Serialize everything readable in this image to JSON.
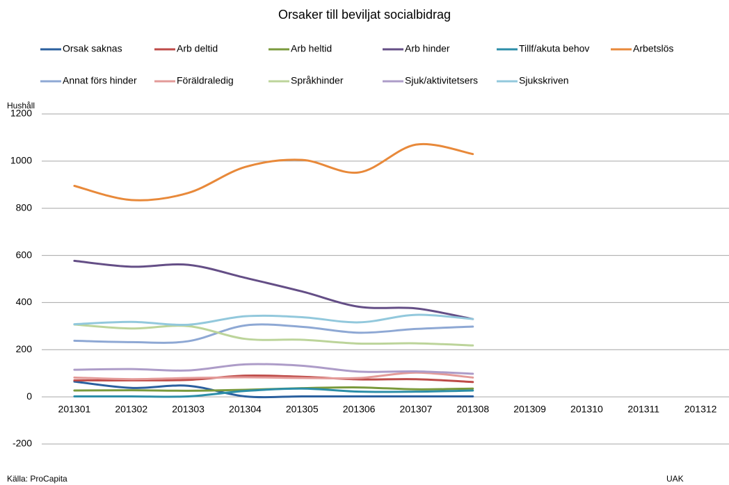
{
  "chart_data": {
    "type": "line",
    "title": "Orsaker till beviljat socialbidrag",
    "y_label": "Hushåll",
    "source": "Källa: ProCapita",
    "note": "UAK",
    "categories": [
      "201301",
      "201302",
      "201303",
      "201304",
      "201305",
      "201306",
      "201307",
      "201308",
      "201309",
      "201310",
      "201311",
      "201312"
    ],
    "ylim": [
      -200,
      1200
    ],
    "yticks": [
      -200,
      0,
      200,
      400,
      600,
      800,
      1000,
      1200
    ],
    "grid": true,
    "smooth": true,
    "series": [
      {
        "name": "Orsak saknas",
        "color": "#2a5f9e",
        "values": [
          65,
          38,
          47,
          2,
          2,
          2,
          2,
          2,
          null,
          null,
          null,
          null
        ]
      },
      {
        "name": "Arb deltid",
        "color": "#be4b48",
        "values": [
          70,
          70,
          72,
          90,
          85,
          74,
          75,
          63,
          null,
          null,
          null,
          null
        ]
      },
      {
        "name": "Arb heltid",
        "color": "#7a9a3c",
        "values": [
          27,
          28,
          26,
          30,
          37,
          40,
          32,
          35,
          null,
          null,
          null,
          null
        ]
      },
      {
        "name": "Arb hinder",
        "color": "#644e86",
        "values": [
          577,
          552,
          560,
          505,
          447,
          382,
          375,
          330,
          null,
          null,
          null,
          null
        ]
      },
      {
        "name": "Tillf/akuta behov",
        "color": "#2c8ea8",
        "values": [
          2,
          2,
          2,
          25,
          35,
          22,
          22,
          27,
          null,
          null,
          null,
          null
        ]
      },
      {
        "name": "Arbetslös",
        "color": "#e8893a",
        "values": [
          895,
          835,
          865,
          975,
          1005,
          952,
          1070,
          1030,
          null,
          null,
          null,
          null
        ]
      },
      {
        "name": "Annat förs hinder",
        "color": "#8ea8d4",
        "values": [
          238,
          232,
          236,
          303,
          297,
          272,
          288,
          298,
          null,
          null,
          null,
          null
        ]
      },
      {
        "name": "Föräldraledig",
        "color": "#e39a98",
        "values": [
          82,
          75,
          80,
          83,
          80,
          80,
          103,
          82,
          null,
          null,
          null,
          null
        ]
      },
      {
        "name": "Språkhinder",
        "color": "#bcd49a",
        "values": [
          307,
          290,
          300,
          246,
          242,
          226,
          227,
          218,
          null,
          null,
          null,
          null
        ]
      },
      {
        "name": "Sjuk/aktivitetsers",
        "color": "#ad9cc8",
        "values": [
          115,
          118,
          112,
          138,
          132,
          107,
          108,
          98,
          null,
          null,
          null,
          null
        ]
      },
      {
        "name": "Sjukskriven",
        "color": "#92c8dc",
        "values": [
          308,
          318,
          306,
          342,
          338,
          316,
          348,
          330,
          null,
          null,
          null,
          null
        ]
      }
    ]
  }
}
